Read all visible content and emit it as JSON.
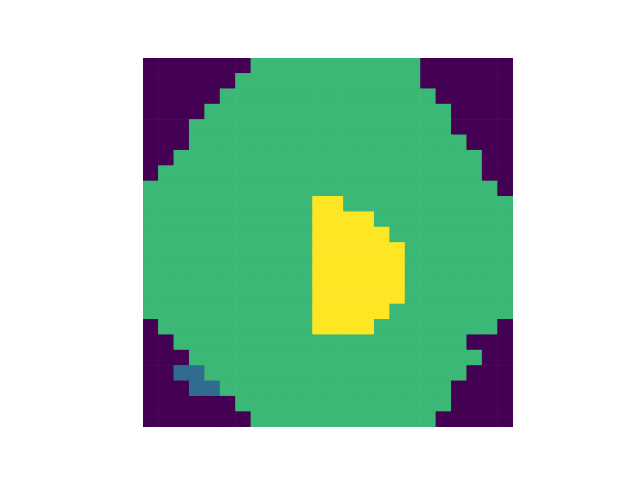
{
  "chart_data": {
    "type": "heatmap",
    "tick_labels": false,
    "cells": [
      [
        0,
        0,
        0,
        0,
        0,
        0,
        0,
        0.67,
        0.67,
        0.67,
        0.67,
        0.67,
        0.67,
        0.67,
        0.67,
        0.67,
        0.67,
        0.67,
        0,
        0,
        0,
        0,
        0,
        0
      ],
      [
        0,
        0,
        0,
        0,
        0,
        0,
        0.67,
        0.67,
        0.67,
        0.67,
        0.67,
        0.67,
        0.67,
        0.67,
        0.67,
        0.67,
        0.67,
        0.67,
        0,
        0,
        0,
        0,
        0,
        0
      ],
      [
        0,
        0,
        0,
        0,
        0,
        0.67,
        0.67,
        0.67,
        0.67,
        0.67,
        0.67,
        0.67,
        0.67,
        0.67,
        0.67,
        0.67,
        0.67,
        0.67,
        0.67,
        0,
        0,
        0,
        0,
        0
      ],
      [
        0,
        0,
        0,
        0,
        0.67,
        0.67,
        0.67,
        0.67,
        0.67,
        0.67,
        0.67,
        0.67,
        0.67,
        0.67,
        0.67,
        0.67,
        0.67,
        0.67,
        0.67,
        0.67,
        0,
        0,
        0,
        0
      ],
      [
        0,
        0,
        0,
        0.67,
        0.67,
        0.67,
        0.67,
        0.67,
        0.67,
        0.67,
        0.67,
        0.67,
        0.67,
        0.67,
        0.67,
        0.67,
        0.67,
        0.67,
        0.67,
        0.67,
        0,
        0,
        0,
        0
      ],
      [
        0,
        0,
        0,
        0.67,
        0.67,
        0.67,
        0.67,
        0.67,
        0.67,
        0.67,
        0.67,
        0.67,
        0.67,
        0.67,
        0.67,
        0.67,
        0.67,
        0.67,
        0.67,
        0.67,
        0.67,
        0,
        0,
        0
      ],
      [
        0,
        0,
        0.67,
        0.67,
        0.67,
        0.67,
        0.67,
        0.67,
        0.67,
        0.67,
        0.67,
        0.67,
        0.67,
        0.67,
        0.67,
        0.67,
        0.67,
        0.67,
        0.67,
        0.67,
        0.67,
        0.67,
        0,
        0
      ],
      [
        0,
        0.67,
        0.67,
        0.67,
        0.67,
        0.67,
        0.67,
        0.67,
        0.67,
        0.67,
        0.67,
        0.67,
        0.67,
        0.67,
        0.67,
        0.67,
        0.67,
        0.67,
        0.67,
        0.67,
        0.67,
        0.67,
        0,
        0
      ],
      [
        0.67,
        0.67,
        0.67,
        0.67,
        0.67,
        0.67,
        0.67,
        0.67,
        0.67,
        0.67,
        0.67,
        0.67,
        0.67,
        0.67,
        0.67,
        0.67,
        0.67,
        0.67,
        0.67,
        0.67,
        0.67,
        0.67,
        0.67,
        0
      ],
      [
        0.67,
        0.67,
        0.67,
        0.67,
        0.67,
        0.67,
        0.67,
        0.67,
        0.67,
        0.67,
        0.67,
        1,
        1,
        0.67,
        0.67,
        0.67,
        0.67,
        0.67,
        0.67,
        0.67,
        0.67,
        0.67,
        0.67,
        0.67
      ],
      [
        0.67,
        0.67,
        0.67,
        0.67,
        0.67,
        0.67,
        0.67,
        0.67,
        0.67,
        0.67,
        0.67,
        1,
        1,
        1,
        1,
        0.67,
        0.67,
        0.67,
        0.67,
        0.67,
        0.67,
        0.67,
        0.67,
        0.67
      ],
      [
        0.67,
        0.67,
        0.67,
        0.67,
        0.67,
        0.67,
        0.67,
        0.67,
        0.67,
        0.67,
        0.67,
        1,
        1,
        1,
        1,
        1,
        0.67,
        0.67,
        0.67,
        0.67,
        0.67,
        0.67,
        0.67,
        0.67
      ],
      [
        0.67,
        0.67,
        0.67,
        0.67,
        0.67,
        0.67,
        0.67,
        0.67,
        0.67,
        0.67,
        0.67,
        1,
        1,
        1,
        1,
        1,
        1,
        0.67,
        0.67,
        0.67,
        0.67,
        0.67,
        0.67,
        0.67
      ],
      [
        0.67,
        0.67,
        0.67,
        0.67,
        0.67,
        0.67,
        0.67,
        0.67,
        0.67,
        0.67,
        0.67,
        1,
        1,
        1,
        1,
        1,
        1,
        0.67,
        0.67,
        0.67,
        0.67,
        0.67,
        0.67,
        0.67
      ],
      [
        0.67,
        0.67,
        0.67,
        0.67,
        0.67,
        0.67,
        0.67,
        0.67,
        0.67,
        0.67,
        0.67,
        1,
        1,
        1,
        1,
        1,
        1,
        0.67,
        0.67,
        0.67,
        0.67,
        0.67,
        0.67,
        0.67
      ],
      [
        0.67,
        0.67,
        0.67,
        0.67,
        0.67,
        0.67,
        0.67,
        0.67,
        0.67,
        0.67,
        0.67,
        1,
        1,
        1,
        1,
        1,
        1,
        0.67,
        0.67,
        0.67,
        0.67,
        0.67,
        0.67,
        0.67
      ],
      [
        0.67,
        0.67,
        0.67,
        0.67,
        0.67,
        0.67,
        0.67,
        0.67,
        0.67,
        0.67,
        0.67,
        1,
        1,
        1,
        1,
        1,
        0.67,
        0.67,
        0.67,
        0.67,
        0.67,
        0.67,
        0.67,
        0.67
      ],
      [
        0,
        0.67,
        0.67,
        0.67,
        0.67,
        0.67,
        0.67,
        0.67,
        0.67,
        0.67,
        0.67,
        1,
        1,
        1,
        1,
        0.67,
        0.67,
        0.67,
        0.67,
        0.67,
        0.67,
        0.67,
        0.67,
        0
      ],
      [
        0,
        0,
        0.67,
        0.67,
        0.67,
        0.67,
        0.67,
        0.67,
        0.67,
        0.67,
        0.67,
        0.67,
        0.67,
        0.67,
        0.67,
        0.67,
        0.67,
        0.67,
        0.67,
        0.67,
        0.67,
        0,
        0,
        0
      ],
      [
        0,
        0,
        0,
        0.67,
        0.67,
        0.67,
        0.67,
        0.67,
        0.67,
        0.67,
        0.67,
        0.67,
        0.67,
        0.67,
        0.67,
        0.67,
        0.67,
        0.67,
        0.67,
        0.67,
        0.67,
        0.67,
        0,
        0
      ],
      [
        0,
        0,
        0.35,
        0.35,
        0.67,
        0.67,
        0.67,
        0.67,
        0.67,
        0.67,
        0.67,
        0.67,
        0.67,
        0.67,
        0.67,
        0.67,
        0.67,
        0.67,
        0.67,
        0.67,
        0.67,
        0,
        0,
        0
      ],
      [
        0,
        0,
        0,
        0.35,
        0.35,
        0.67,
        0.67,
        0.67,
        0.67,
        0.67,
        0.67,
        0.67,
        0.67,
        0.67,
        0.67,
        0.67,
        0.67,
        0.67,
        0.67,
        0.67,
        0,
        0,
        0,
        0
      ],
      [
        0,
        0,
        0,
        0,
        0,
        0,
        0.67,
        0.67,
        0.67,
        0.67,
        0.67,
        0.67,
        0.67,
        0.67,
        0.67,
        0.67,
        0.67,
        0.67,
        0.67,
        0.67,
        0,
        0,
        0,
        0
      ],
      [
        0,
        0,
        0,
        0,
        0,
        0,
        0,
        0.67,
        0.67,
        0.67,
        0.67,
        0.67,
        0.67,
        0.67,
        0.67,
        0.67,
        0.67,
        0.67,
        0.67,
        0,
        0,
        0,
        0,
        0
      ]
    ]
  }
}
